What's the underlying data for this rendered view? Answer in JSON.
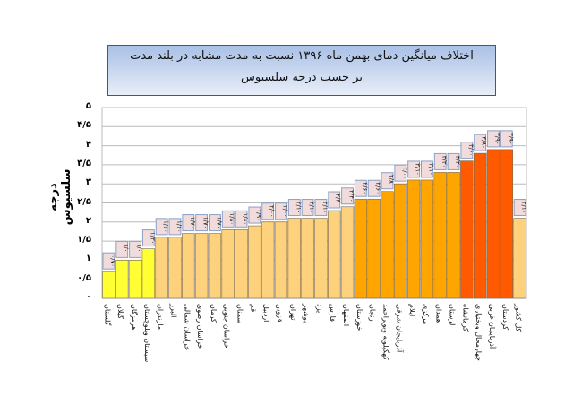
{
  "chart_data": {
    "type": "bar",
    "title": "اختلاف میانگین دمای بهمن ماه ۱۳۹۶ نسبت به مدت مشابه در بلند مدت",
    "subtitle": "بر حسب درجه سلسیوس",
    "ylabel": "درجه سلسیوس",
    "xlabel": "",
    "ylim": [
      0,
      5
    ],
    "yticks": [
      0,
      0.5,
      1,
      1.5,
      2,
      2.5,
      3,
      3.5,
      4,
      4.5,
      5
    ],
    "ytick_labels": [
      "۰",
      "۰/۵",
      "۱",
      "۱/۵",
      "۲",
      "۲/۵",
      "۳",
      "۳/۵",
      "۴",
      "۴/۵",
      "۵"
    ],
    "grid": true,
    "legend": "none",
    "categories": [
      "گلستان",
      "گیلان",
      "هرمزگان",
      "سیستان وبلوچستان",
      "مازندران",
      "البرز",
      "خراسان شمالی",
      "خراسان رضوی",
      "کرمان",
      "خراسان جنوبی",
      "سمنان",
      "قم",
      "اردبیل",
      "قزوین",
      "تهران",
      "بوشهر",
      "یزد",
      "فارس",
      "اصفهان",
      "خوزستان",
      "زنجان",
      "کهگیلویه وبویراحمد",
      "آذربایجان شرقی",
      "ایلام",
      "مرکزی",
      "همدان",
      "لرستان",
      "کرمانشاه",
      "چهارمحال وبختیاری",
      "آذربایجان غربی",
      "کردستان",
      "کل کشور"
    ],
    "values": [
      0.7,
      1.0,
      1.0,
      1.3,
      1.6,
      1.6,
      1.7,
      1.7,
      1.7,
      1.8,
      1.8,
      1.9,
      2.0,
      2.0,
      2.1,
      2.1,
      2.1,
      2.3,
      2.4,
      2.6,
      2.6,
      2.8,
      3.0,
      3.1,
      3.1,
      3.3,
      3.3,
      3.6,
      3.8,
      3.9,
      3.9,
      2.1
    ],
    "bar_colors": [
      "#ffff33",
      "#ffff33",
      "#ffff33",
      "#ffff33",
      "#fed27c",
      "#fed27c",
      "#fed27c",
      "#fed27c",
      "#fed27c",
      "#fed27c",
      "#fed27c",
      "#fed27c",
      "#fed27c",
      "#fed27c",
      "#fed27c",
      "#fed27c",
      "#fed27c",
      "#fed27c",
      "#fed27c",
      "#ffa500",
      "#ffa500",
      "#ffa500",
      "#ffa500",
      "#ffa500",
      "#ffa500",
      "#ffa500",
      "#ffa500",
      "#ff5a00",
      "#ff5a00",
      "#ff5a00",
      "#ff5a00",
      "#fed27c"
    ],
    "label_box_color": "#f2dcdb"
  }
}
